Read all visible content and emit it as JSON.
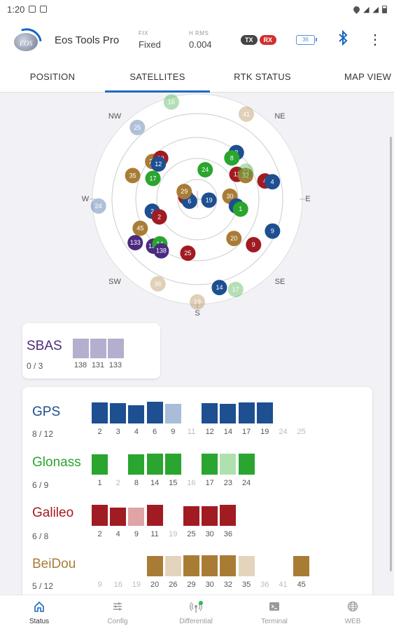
{
  "status_bar": {
    "time": "1:20"
  },
  "app": {
    "title": "Eos Tools Pro",
    "logo_text": "EOS",
    "metrics": [
      {
        "label": "FIX",
        "value": "Fixed"
      },
      {
        "label": "H RMS",
        "value": "0.004"
      }
    ],
    "tx_label": "TX",
    "rx_label": "RX",
    "battery": "36"
  },
  "tabs": [
    {
      "label": "POSITION"
    },
    {
      "label": "SATELLITES",
      "active": true
    },
    {
      "label": "RTK STATUS"
    },
    {
      "label": "MAP VIEW"
    }
  ],
  "colors": {
    "gps": "#1d4f91",
    "gps_light": "#a9bcd9",
    "glonass": "#2aa52f",
    "glonass_light": "#afe1af",
    "galileo": "#a11b22",
    "galileo_light": "#e0a3a6",
    "beidou": "#a97c36",
    "beidou_light": "#e4d4bc",
    "sbas": "#b4afce",
    "sbas_dark": "#4b2b7f",
    "accent": "#1e6bbd"
  },
  "skyplot": {
    "directions": [
      "NW",
      "NE",
      "W",
      "E",
      "SW",
      "SE",
      "S"
    ],
    "satellites": [
      {
        "id": "16",
        "c": "glonass",
        "az": 345,
        "el": 4,
        "dim": true
      },
      {
        "id": "41",
        "c": "beidou",
        "az": 30,
        "el": 6,
        "dim": true
      },
      {
        "id": "25",
        "c": "gps",
        "az": 320,
        "el": 10,
        "dim": true
      },
      {
        "id": "3",
        "c": "gps",
        "az": 40,
        "el": 38
      },
      {
        "id": "8",
        "c": "glonass",
        "az": 40,
        "el": 44
      },
      {
        "id": "26",
        "c": "beidou",
        "az": 310,
        "el": 40
      },
      {
        "id": "30",
        "c": "galileo",
        "az": 318,
        "el": 43
      },
      {
        "id": "12",
        "c": "gps",
        "az": 312,
        "el": 45
      },
      {
        "id": "35",
        "c": "beidou",
        "az": 290,
        "el": 31
      },
      {
        "id": "17",
        "c": "glonass",
        "az": 295,
        "el": 48
      },
      {
        "id": "24",
        "c": "glonass",
        "az": 15,
        "el": 64
      },
      {
        "id": "11",
        "c": "galileo",
        "az": 58,
        "el": 50
      },
      {
        "id": "32",
        "c": "beidou",
        "az": 64,
        "el": 44
      },
      {
        "id": "23",
        "c": "glonass",
        "az": 60,
        "el": 42,
        "dim": true
      },
      {
        "id": "4",
        "c": "galileo",
        "az": 75,
        "el": 30
      },
      {
        "id": "4",
        "c": "gps",
        "az": 77,
        "el": 24
      },
      {
        "id": "36",
        "c": "galileo",
        "az": 280,
        "el": 80
      },
      {
        "id": "6",
        "c": "gps",
        "az": 255,
        "el": 83
      },
      {
        "id": "29",
        "c": "beidou",
        "az": 300,
        "el": 77
      },
      {
        "id": "19",
        "c": "gps",
        "az": 95,
        "el": 80
      },
      {
        "id": "30",
        "c": "beidou",
        "az": 85,
        "el": 62
      },
      {
        "id": "1",
        "c": "gps",
        "az": 100,
        "el": 56
      },
      {
        "id": "1",
        "c": "glonass",
        "az": 103,
        "el": 52
      },
      {
        "id": "24",
        "c": "gps",
        "az": 266,
        "el": 5,
        "dim": true
      },
      {
        "id": "2",
        "c": "gps",
        "az": 255,
        "el": 50
      },
      {
        "id": "2",
        "c": "galileo",
        "az": 245,
        "el": 54
      },
      {
        "id": "45",
        "c": "beidou",
        "az": 243,
        "el": 35
      },
      {
        "id": "133",
        "c": "sbas_dark",
        "az": 235,
        "el": 25
      },
      {
        "id": "131",
        "c": "sbas_dark",
        "az": 223,
        "el": 35
      },
      {
        "id": "14",
        "c": "glonass",
        "az": 220,
        "el": 40
      },
      {
        "id": "138",
        "c": "sbas_dark",
        "az": 215,
        "el": 36
      },
      {
        "id": "9",
        "c": "gps",
        "az": 113,
        "el": 20
      },
      {
        "id": "20",
        "c": "beidou",
        "az": 137,
        "el": 44
      },
      {
        "id": "9",
        "c": "galileo",
        "az": 129,
        "el": 28
      },
      {
        "id": "25",
        "c": "galileo",
        "az": 190,
        "el": 43
      },
      {
        "id": "36",
        "c": "beidou",
        "az": 205,
        "el": 10,
        "dim": true
      },
      {
        "id": "19",
        "c": "beidou",
        "az": 180,
        "el": 2,
        "dim": true
      },
      {
        "id": "14",
        "c": "gps",
        "az": 166,
        "el": 12
      },
      {
        "id": "17",
        "c": "glonass",
        "az": 157,
        "el": 6,
        "dim": true
      }
    ]
  },
  "sbas": {
    "name": "SBAS",
    "count": "0 / 3",
    "sats": [
      {
        "id": "138",
        "level": 1.0
      },
      {
        "id": "131",
        "level": 1.0
      },
      {
        "id": "133",
        "level": 1.0
      }
    ]
  },
  "constellations": [
    {
      "name": "GPS",
      "count": "8 / 12",
      "color": "gps",
      "sats": [
        {
          "id": "2",
          "level": 1.0,
          "used": true
        },
        {
          "id": "3",
          "level": 0.95,
          "used": true
        },
        {
          "id": "4",
          "level": 0.85,
          "used": true
        },
        {
          "id": "6",
          "level": 1.03,
          "used": true
        },
        {
          "id": "9",
          "level": 0.93,
          "used": false
        },
        {
          "id": "11",
          "level": 0,
          "used": false
        },
        {
          "id": "12",
          "level": 0.97,
          "used": true
        },
        {
          "id": "14",
          "level": 0.93,
          "used": true
        },
        {
          "id": "17",
          "level": 1.0,
          "used": true
        },
        {
          "id": "19",
          "level": 1.0,
          "used": true
        },
        {
          "id": "24",
          "level": 0,
          "used": false
        },
        {
          "id": "25",
          "level": 0,
          "used": false
        }
      ]
    },
    {
      "name": "Glonass",
      "count": "6 / 9",
      "color": "glonass",
      "sats": [
        {
          "id": "1",
          "level": 0.97,
          "used": true
        },
        {
          "id": "2",
          "level": 0,
          "used": false
        },
        {
          "id": "8",
          "level": 0.97,
          "used": true
        },
        {
          "id": "14",
          "level": 1.0,
          "used": true
        },
        {
          "id": "15",
          "level": 1.0,
          "used": true
        },
        {
          "id": "16",
          "level": 0,
          "used": false
        },
        {
          "id": "17",
          "level": 1.0,
          "used": true
        },
        {
          "id": "23",
          "level": 1.0,
          "used": false
        },
        {
          "id": "24",
          "level": 1.0,
          "used": true
        }
      ]
    },
    {
      "name": "Galileo",
      "count": "6 / 8",
      "color": "galileo",
      "sats": [
        {
          "id": "2",
          "level": 1.0,
          "used": true
        },
        {
          "id": "4",
          "level": 0.87,
          "used": true
        },
        {
          "id": "9",
          "level": 0.87,
          "used": false
        },
        {
          "id": "11",
          "level": 1.0,
          "used": true
        },
        {
          "id": "19",
          "level": 0,
          "used": false
        },
        {
          "id": "25",
          "level": 0.93,
          "used": true
        },
        {
          "id": "30",
          "level": 0.93,
          "used": true
        },
        {
          "id": "36",
          "level": 1.0,
          "used": true
        }
      ]
    },
    {
      "name": "BeiDou",
      "count": "5 / 12",
      "color": "beidou",
      "sats": [
        {
          "id": "9",
          "level": 0,
          "used": false
        },
        {
          "id": "16",
          "level": 0,
          "used": false
        },
        {
          "id": "19",
          "level": 0,
          "used": false
        },
        {
          "id": "20",
          "level": 0.97,
          "used": true
        },
        {
          "id": "26",
          "level": 0.97,
          "used": false
        },
        {
          "id": "29",
          "level": 1.0,
          "used": true
        },
        {
          "id": "30",
          "level": 1.0,
          "used": true
        },
        {
          "id": "32",
          "level": 1.0,
          "used": true
        },
        {
          "id": "35",
          "level": 0.97,
          "used": false
        },
        {
          "id": "36",
          "level": 0,
          "used": false
        },
        {
          "id": "41",
          "level": 0,
          "used": false
        },
        {
          "id": "45",
          "level": 0.97,
          "used": true
        }
      ]
    }
  ],
  "bottom_nav": [
    {
      "label": "Status",
      "icon": "home-icon",
      "active": true
    },
    {
      "label": "Config",
      "icon": "sliders-icon"
    },
    {
      "label": "Differential",
      "icon": "antenna-icon"
    },
    {
      "label": "Terminal",
      "icon": "terminal-icon"
    },
    {
      "label": "WEB",
      "icon": "globe-icon"
    }
  ]
}
